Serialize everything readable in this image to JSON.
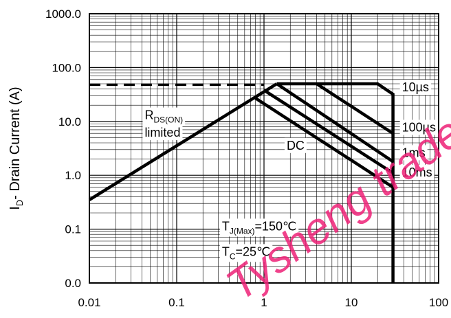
{
  "chart_data": {
    "type": "line",
    "title": "",
    "xlabel": "",
    "ylabel_main": "I",
    "ylabel_sub": "D",
    "ylabel_rest": "- Drain Current (A)",
    "x_scale": "log",
    "y_scale": "log",
    "xlim": [
      0.01,
      100
    ],
    "ylim": [
      0.01,
      1000
    ],
    "x_ticks": [
      {
        "value": 0.01,
        "label": "0.01"
      },
      {
        "value": 0.1,
        "label": "0.1"
      },
      {
        "value": 1,
        "label": "1"
      },
      {
        "value": 10,
        "label": "10"
      },
      {
        "value": 100,
        "label": "100"
      }
    ],
    "y_ticks": [
      {
        "value": 0.01,
        "label": "0.0"
      },
      {
        "value": 0.1,
        "label": "0.1"
      },
      {
        "value": 1,
        "label": "1.0"
      },
      {
        "value": 10,
        "label": "10.0"
      },
      {
        "value": 100,
        "label": "100.0"
      },
      {
        "value": 1000,
        "label": "1000.0"
      }
    ],
    "grid": true,
    "series": [
      {
        "id": "rds-limit",
        "style": "solid",
        "points": [
          [
            0.01,
            0.35
          ],
          [
            1.4,
            50
          ]
        ]
      },
      {
        "id": "current-limit",
        "style": "dashed",
        "points": [
          [
            0.01,
            48
          ],
          [
            1.0,
            48
          ]
        ]
      },
      {
        "id": "10us",
        "style": "solid",
        "points": [
          [
            1.4,
            50
          ],
          [
            20,
            50
          ],
          [
            30,
            32
          ],
          [
            30,
            0.01
          ]
        ]
      },
      {
        "id": "100us",
        "style": "solid",
        "points": [
          [
            4,
            50
          ],
          [
            30,
            6
          ]
        ]
      },
      {
        "id": "1ms",
        "style": "solid",
        "points": [
          [
            1.4,
            50
          ],
          [
            30,
            1.8
          ]
        ]
      },
      {
        "id": "10ms",
        "style": "solid",
        "points": [
          [
            1.0,
            38
          ],
          [
            30,
            1.1
          ]
        ]
      },
      {
        "id": "dc",
        "style": "solid",
        "points": [
          [
            0.8,
            27
          ],
          [
            30,
            0.6
          ]
        ]
      }
    ],
    "annotations": [
      {
        "id": "10us",
        "parts": [
          {
            "t": "10µs"
          }
        ],
        "x": 38,
        "y": 36,
        "anchor": "start"
      },
      {
        "id": "100us",
        "parts": [
          {
            "t": "100µs"
          }
        ],
        "x": 38,
        "y": 6.5,
        "anchor": "start"
      },
      {
        "id": "1ms",
        "parts": [
          {
            "t": "1ms"
          }
        ],
        "x": 38,
        "y": 2.2,
        "anchor": "start"
      },
      {
        "id": "10ms",
        "parts": [
          {
            "t": "10ms"
          }
        ],
        "x": 38,
        "y": 0.95,
        "anchor": "start"
      },
      {
        "id": "dc",
        "parts": [
          {
            "t": "DC"
          }
        ],
        "x": 2.3,
        "y": 3.0,
        "anchor": "middle"
      },
      {
        "id": "rds-label",
        "parts": [
          {
            "t": "R"
          },
          {
            "t": "DS(ON)",
            "sub": true
          }
        ],
        "x": 0.043,
        "y": 11,
        "anchor": "start"
      },
      {
        "id": "limited-label",
        "parts": [
          {
            "t": "limited"
          }
        ],
        "x": 0.043,
        "y": 5.2,
        "anchor": "start"
      },
      {
        "id": "tj-label",
        "parts": [
          {
            "t": "T"
          },
          {
            "t": "J(Max)",
            "sub": true
          },
          {
            "t": "=150℃"
          }
        ],
        "x": 0.33,
        "y": 0.095,
        "anchor": "start"
      },
      {
        "id": "tc-label",
        "parts": [
          {
            "t": "T"
          },
          {
            "t": "C",
            "sub": true
          },
          {
            "t": "=25℃"
          }
        ],
        "x": 0.33,
        "y": 0.032,
        "anchor": "start"
      }
    ]
  },
  "watermark": {
    "text": "Tysheng trade",
    "color": "#ee2277"
  }
}
